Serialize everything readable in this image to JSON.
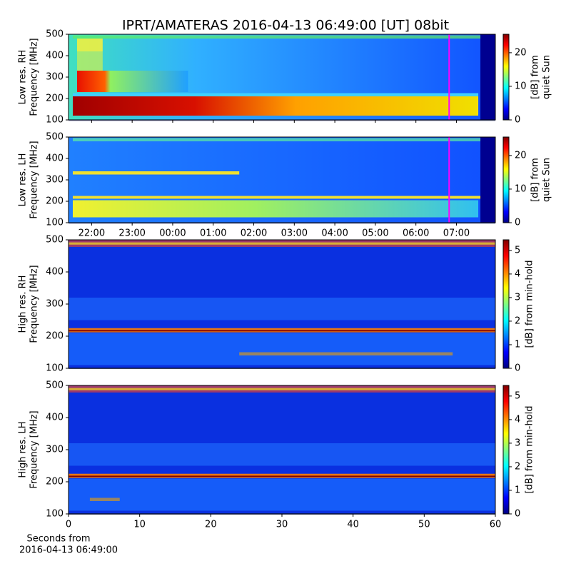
{
  "title": "IPRT/AMATERAS 2016-04-13 06:49:00 [UT]   08bit",
  "chart_data": [
    {
      "type": "heatmap",
      "ylabel": [
        "Low res. RH",
        "Frequency [MHz]"
      ],
      "xlim": [
        21.43,
        31.96
      ],
      "ylim": [
        100,
        500
      ],
      "yticks": [
        100,
        200,
        300,
        400,
        500
      ],
      "colorbar_label": [
        "[dB] from",
        "quiet Sun"
      ],
      "clim": [
        0,
        25.5
      ],
      "cticks": [
        0,
        10,
        20
      ],
      "vline": {
        "x": 30.82,
        "color": "#ff00ff"
      }
    },
    {
      "type": "heatmap",
      "ylabel": [
        "Low res. LH",
        "Frequency [MHz]"
      ],
      "xlim": [
        21.43,
        31.96
      ],
      "ylim": [
        100,
        500
      ],
      "yticks": [
        100,
        200,
        300,
        400,
        500
      ],
      "xticks": [
        {
          "value": 22,
          "label": "22:00"
        },
        {
          "value": 23,
          "label": "23:00"
        },
        {
          "value": 24,
          "label": "00:00"
        },
        {
          "value": 25,
          "label": "01:00"
        },
        {
          "value": 26,
          "label": "02:00"
        },
        {
          "value": 27,
          "label": "03:00"
        },
        {
          "value": 28,
          "label": "04:00"
        },
        {
          "value": 29,
          "label": "05:00"
        },
        {
          "value": 30,
          "label": "06:00"
        },
        {
          "value": 31,
          "label": "07:00"
        }
      ],
      "colorbar_label": [
        "[dB] from",
        "quiet Sun"
      ],
      "clim": [
        0,
        25.5
      ],
      "cticks": [
        0,
        10,
        20
      ],
      "vline": {
        "x": 30.82,
        "color": "#ff00ff"
      }
    },
    {
      "type": "heatmap",
      "ylabel": [
        "High res. RH",
        "Frequency [MHz]"
      ],
      "xlim": [
        0,
        60
      ],
      "ylim": [
        100,
        500
      ],
      "yticks": [
        100,
        200,
        300,
        400,
        500
      ],
      "colorbar_label": [
        "[dB] from min-hold"
      ],
      "clim": [
        0,
        5.45
      ],
      "cticks": [
        0,
        1,
        2,
        3,
        4,
        5
      ]
    },
    {
      "type": "heatmap",
      "ylabel": [
        "High res. LH",
        "Frequency [MHz]"
      ],
      "xlim": [
        0,
        60
      ],
      "ylim": [
        100,
        500
      ],
      "yticks": [
        100,
        200,
        300,
        400,
        500
      ],
      "xticks": [
        0,
        10,
        20,
        30,
        40,
        50,
        60
      ],
      "xlabel": [
        "Seconds from",
        "2016-04-13 06:49:00"
      ],
      "colorbar_label": [
        "[dB] from min-hold"
      ],
      "clim": [
        0,
        5.45
      ],
      "cticks": [
        0,
        1,
        2,
        3,
        4,
        5
      ]
    }
  ]
}
